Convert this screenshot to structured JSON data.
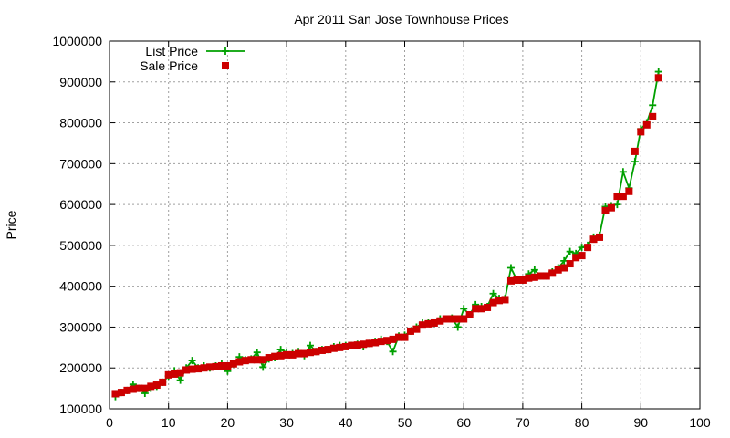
{
  "chart_data": {
    "type": "line",
    "title": "Apr 2011 San Jose Townhouse Prices",
    "xlabel": "",
    "ylabel": "Price",
    "xlim": [
      0,
      100
    ],
    "ylim": [
      100000,
      1000000
    ],
    "x_ticks": [
      0,
      10,
      20,
      30,
      40,
      50,
      60,
      70,
      80,
      90,
      100
    ],
    "y_ticks": [
      100000,
      200000,
      300000,
      400000,
      500000,
      600000,
      700000,
      800000,
      900000,
      1000000
    ],
    "grid": true,
    "legend_position": "top-left",
    "series": [
      {
        "name": "List Price",
        "style": "line-with-plus",
        "color": "#00a000",
        "x": [
          1,
          2,
          3,
          4,
          5,
          6,
          7,
          8,
          9,
          10,
          11,
          12,
          13,
          14,
          15,
          16,
          17,
          18,
          19,
          20,
          21,
          22,
          23,
          24,
          25,
          26,
          27,
          28,
          29,
          30,
          31,
          32,
          33,
          34,
          35,
          36,
          37,
          38,
          39,
          40,
          41,
          42,
          43,
          44,
          45,
          46,
          47,
          48,
          49,
          50,
          51,
          52,
          53,
          54,
          55,
          56,
          57,
          58,
          59,
          60,
          61,
          62,
          63,
          64,
          65,
          66,
          67,
          68,
          69,
          70,
          71,
          72,
          73,
          74,
          75,
          76,
          77,
          78,
          79,
          80,
          81,
          82,
          83,
          84,
          85,
          86,
          87,
          88,
          89,
          90,
          91,
          92,
          93
        ],
        "values": [
          130000,
          140000,
          145000,
          160000,
          150000,
          138000,
          150000,
          155000,
          165000,
          180000,
          193000,
          170000,
          200000,
          218000,
          200000,
          205000,
          200000,
          205000,
          210000,
          192000,
          210000,
          227000,
          220000,
          222000,
          238000,
          202000,
          222000,
          225000,
          245000,
          238000,
          235000,
          240000,
          230000,
          255000,
          240000,
          245000,
          245000,
          252000,
          255000,
          255000,
          255000,
          258000,
          252000,
          260000,
          265000,
          270000,
          265000,
          240000,
          278000,
          280000,
          290000,
          300000,
          310000,
          310000,
          310000,
          320000,
          320000,
          322000,
          300000,
          345000,
          330000,
          355000,
          350000,
          350000,
          382000,
          370000,
          370000,
          445000,
          415000,
          415000,
          430000,
          440000,
          425000,
          425000,
          435000,
          445000,
          462000,
          485000,
          480000,
          495000,
          500000,
          520000,
          525000,
          595000,
          597000,
          600000,
          680000,
          640000,
          705000,
          785000,
          800000,
          843000,
          925000
        ]
      },
      {
        "name": "Sale Price",
        "style": "square-markers",
        "color": "#cc0000",
        "x": [
          1,
          2,
          3,
          4,
          5,
          6,
          7,
          8,
          9,
          10,
          11,
          12,
          13,
          14,
          15,
          16,
          17,
          18,
          19,
          20,
          21,
          22,
          23,
          24,
          25,
          26,
          27,
          28,
          29,
          30,
          31,
          32,
          33,
          34,
          35,
          36,
          37,
          38,
          39,
          40,
          41,
          42,
          43,
          44,
          45,
          46,
          47,
          48,
          49,
          50,
          51,
          52,
          53,
          54,
          55,
          56,
          57,
          58,
          59,
          60,
          61,
          62,
          63,
          64,
          65,
          66,
          67,
          68,
          69,
          70,
          71,
          72,
          73,
          74,
          75,
          76,
          77,
          78,
          79,
          80,
          81,
          82,
          83,
          84,
          85,
          86,
          87,
          88,
          89,
          90,
          91,
          92,
          93
        ],
        "values": [
          137000,
          140000,
          145000,
          148000,
          150000,
          150000,
          155000,
          158000,
          165000,
          183000,
          185000,
          188000,
          195000,
          197000,
          198000,
          200000,
          202000,
          203000,
          205000,
          205000,
          210000,
          215000,
          218000,
          220000,
          220000,
          220000,
          225000,
          228000,
          230000,
          232000,
          232000,
          235000,
          235000,
          238000,
          240000,
          243000,
          245000,
          248000,
          250000,
          252000,
          255000,
          256000,
          258000,
          260000,
          262000,
          265000,
          267000,
          270000,
          275000,
          275000,
          290000,
          295000,
          305000,
          308000,
          310000,
          315000,
          320000,
          320000,
          320000,
          320000,
          330000,
          345000,
          345000,
          348000,
          360000,
          365000,
          367000,
          413000,
          415000,
          415000,
          420000,
          422000,
          425000,
          425000,
          432000,
          440000,
          445000,
          455000,
          470000,
          475000,
          495000,
          515000,
          520000,
          585000,
          592000,
          620000,
          620000,
          632000,
          730000,
          778000,
          795000,
          815000,
          910000
        ]
      }
    ]
  }
}
